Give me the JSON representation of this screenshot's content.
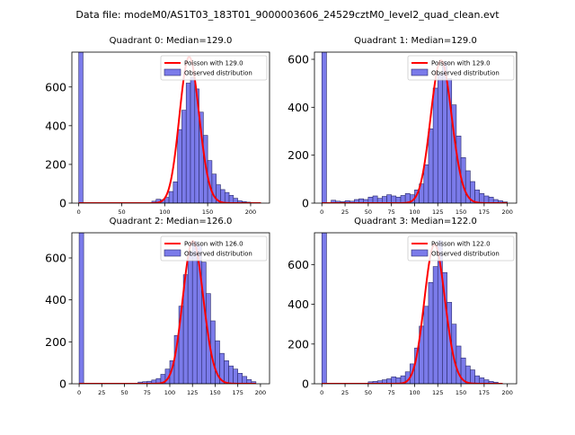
{
  "figure_title": "Data file: modeM0/AS1T03_183T01_9000003606_24529cztM0_level2_quad_clean.evt",
  "colors": {
    "bar_fill": "#7b7bea",
    "bar_edge": "#2a2a6a",
    "poisson_line": "#ff0000",
    "axis": "#000000"
  },
  "chart_data": [
    {
      "type": "bar",
      "title": "Quadrant 0: Median=129.0",
      "xlim": [
        -8,
        222
      ],
      "ylim": [
        0,
        780
      ],
      "xticks": [
        0,
        50,
        100,
        150,
        200
      ],
      "yticks": [
        0,
        200,
        400,
        600
      ],
      "bin_width": 5,
      "bins": [
        0,
        85,
        90,
        95,
        100,
        105,
        110,
        115,
        120,
        125,
        130,
        135,
        140,
        145,
        150,
        155,
        160,
        165,
        170,
        175,
        180,
        185,
        190,
        195,
        200,
        205
      ],
      "values": [
        780,
        10,
        20,
        18,
        30,
        60,
        110,
        380,
        480,
        620,
        650,
        590,
        470,
        350,
        220,
        150,
        95,
        70,
        55,
        40,
        25,
        12,
        8,
        5,
        3,
        2
      ],
      "poisson_mean": 129.0,
      "poisson_peak": 755,
      "poisson_range": [
        0,
        212
      ],
      "legend": [
        "Poisson with 129.0",
        "Observed distribution"
      ],
      "legend_loc": "upper right"
    },
    {
      "type": "bar",
      "title": "Quadrant 1: Median=129.0",
      "xlim": [
        -8,
        210
      ],
      "ylim": [
        0,
        630
      ],
      "xticks": [
        0,
        25,
        50,
        75,
        100,
        125,
        150,
        175,
        200
      ],
      "yticks": [
        0,
        200,
        400,
        600
      ],
      "bin_width": 5,
      "bins": [
        0,
        10,
        15,
        20,
        25,
        30,
        35,
        40,
        45,
        50,
        55,
        60,
        65,
        70,
        75,
        80,
        85,
        90,
        95,
        100,
        105,
        110,
        115,
        120,
        125,
        130,
        135,
        140,
        145,
        150,
        155,
        160,
        165,
        170,
        175,
        180,
        185,
        190,
        195
      ],
      "values": [
        630,
        12,
        8,
        6,
        10,
        8,
        15,
        18,
        15,
        25,
        30,
        20,
        28,
        35,
        30,
        25,
        32,
        40,
        35,
        55,
        80,
        160,
        310,
        480,
        540,
        590,
        520,
        410,
        280,
        190,
        135,
        90,
        55,
        40,
        30,
        25,
        15,
        10,
        5
      ],
      "poisson_mean": 129.0,
      "poisson_peak": 595,
      "poisson_range": [
        0,
        200
      ],
      "legend": [
        "Poisson with 129.0",
        "Observed distribution"
      ],
      "legend_loc": "upper right"
    },
    {
      "type": "bar",
      "title": "Quadrant 2: Median=126.0",
      "xlim": [
        -8,
        210
      ],
      "ylim": [
        0,
        720
      ],
      "xticks": [
        0,
        25,
        50,
        75,
        100,
        125,
        150,
        175,
        200
      ],
      "yticks": [
        0,
        200,
        400,
        600
      ],
      "bin_width": 5,
      "bins": [
        0,
        65,
        70,
        75,
        80,
        85,
        90,
        95,
        100,
        105,
        110,
        115,
        120,
        125,
        130,
        135,
        140,
        145,
        150,
        155,
        160,
        165,
        170,
        175,
        180,
        185,
        190
      ],
      "values": [
        720,
        8,
        10,
        12,
        18,
        25,
        45,
        70,
        110,
        230,
        370,
        520,
        630,
        680,
        660,
        580,
        430,
        300,
        205,
        145,
        110,
        85,
        70,
        50,
        35,
        20,
        10
      ],
      "poisson_mean": 126.0,
      "poisson_peak": 680,
      "poisson_range": [
        0,
        195
      ],
      "legend": [
        "Poisson with 126.0",
        "Observed distribution"
      ],
      "legend_loc": "upper right"
    },
    {
      "type": "bar",
      "title": "Quadrant 3: Median=122.0",
      "xlim": [
        -8,
        210
      ],
      "ylim": [
        0,
        760
      ],
      "xticks": [
        0,
        25,
        50,
        75,
        100,
        125,
        150,
        175,
        200
      ],
      "yticks": [
        0,
        200,
        400,
        600
      ],
      "bin_width": 5,
      "bins": [
        0,
        50,
        55,
        60,
        65,
        70,
        75,
        80,
        85,
        90,
        95,
        100,
        105,
        110,
        115,
        120,
        125,
        130,
        135,
        140,
        145,
        150,
        155,
        160,
        165,
        170,
        175,
        180,
        185
      ],
      "values": [
        760,
        10,
        12,
        15,
        20,
        25,
        35,
        30,
        40,
        60,
        100,
        180,
        290,
        390,
        510,
        590,
        720,
        560,
        410,
        300,
        190,
        130,
        90,
        70,
        40,
        30,
        20,
        12,
        8
      ],
      "poisson_mean": 122.0,
      "poisson_peak": 700,
      "poisson_range": [
        0,
        195
      ],
      "legend": [
        "Poisson with 122.0",
        "Observed distribution"
      ],
      "legend_loc": "upper right"
    }
  ]
}
